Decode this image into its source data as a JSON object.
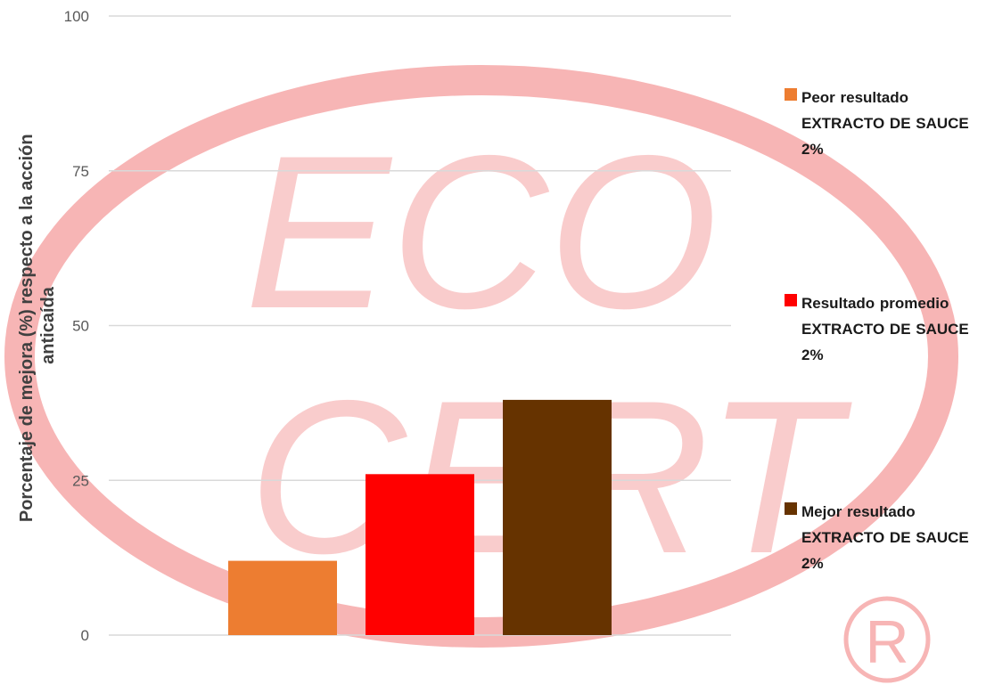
{
  "chart_data": {
    "type": "bar",
    "ylabel": "Porcentaje de mejora (%) respecto a la acción anticaída",
    "xlabel": "",
    "ylim": [
      0,
      100
    ],
    "yticks": [
      "0",
      "25",
      "50",
      "75",
      "100"
    ],
    "grid": true,
    "legend_position": "right",
    "series": [
      {
        "name": "Peor resultado EXTRACTO DE SAUCE 2%",
        "value": 12,
        "color": "#ED7D31"
      },
      {
        "name": "Resultado promedio EXTRACTO DE SAUCE 2%",
        "value": 26,
        "color": "#FF0000"
      },
      {
        "name": "Mejor resultado EXTRACTO DE SAUCE 2%",
        "value": 38,
        "color": "#663300"
      }
    ]
  },
  "watermark": {
    "text": "ECOCERT",
    "mark": "®",
    "color": "#f7b5b5"
  }
}
